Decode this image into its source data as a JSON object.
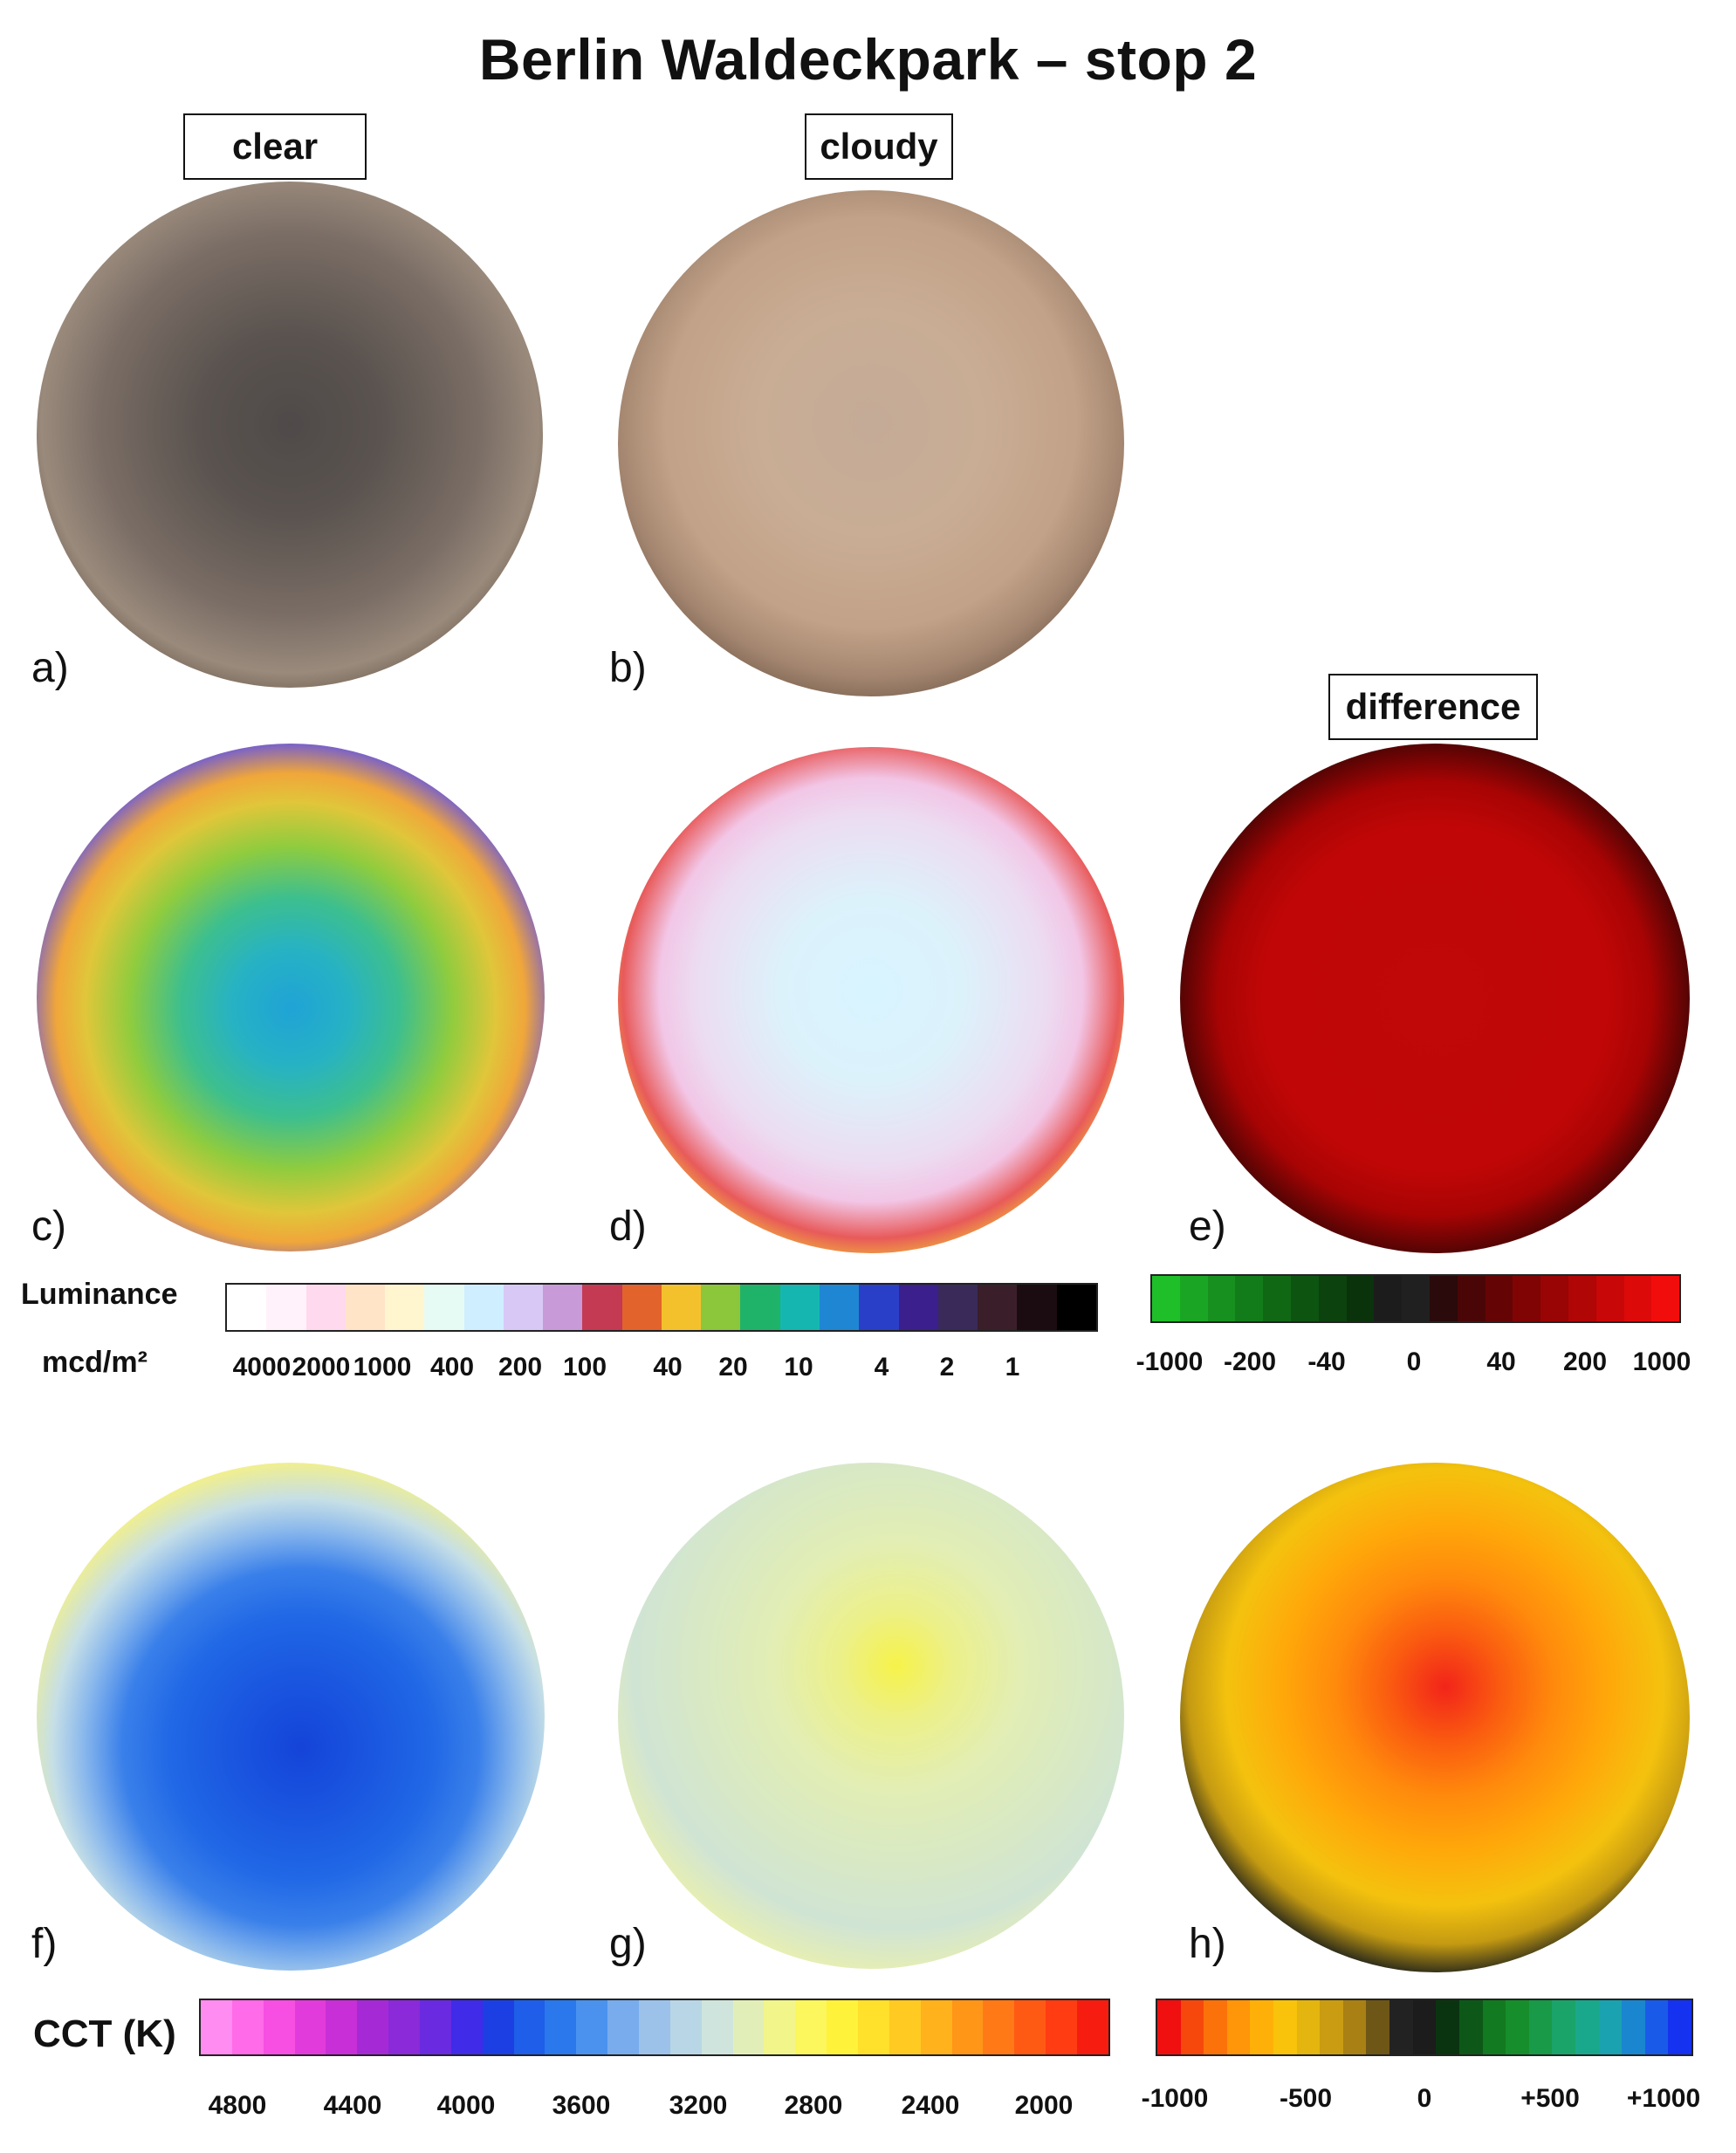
{
  "title": "Berlin Waldeckpark – stop 2",
  "column_labels": {
    "clear": "clear",
    "cloudy": "cloudy",
    "difference": "difference"
  },
  "panels": {
    "a": "a)",
    "b": "b)",
    "c": "c)",
    "d": "d)",
    "e": "e)",
    "f": "f)",
    "g": "g)",
    "h": "h)"
  },
  "luminance_scale": {
    "title": "Luminance",
    "unit": "mcd/m²",
    "ticks": [
      "4000",
      "2000",
      "1000",
      "400",
      "200",
      "100",
      "40",
      "20",
      "10",
      "4",
      "2",
      "1"
    ],
    "colors": [
      "#ffffff",
      "#fff2fb",
      "#ffd9ee",
      "#ffe4c8",
      "#fff6d0",
      "#e6fbf4",
      "#cfeeff",
      "#d8c8f5",
      "#c89ad8",
      "#c43a52",
      "#e2632b",
      "#f3c12c",
      "#8cc63a",
      "#1fb36a",
      "#16b6b0",
      "#1f86d4",
      "#2a3fc7",
      "#3b1f8c",
      "#3a2a5a",
      "#3a1f2a",
      "#1a0c10",
      "#000000"
    ]
  },
  "luminance_difference_scale": {
    "ticks": [
      "-1000",
      "-200",
      "-40",
      "0",
      "40",
      "200",
      "1000"
    ],
    "colors": [
      "#1fbf2a",
      "#1aa624",
      "#17901f",
      "#137c1a",
      "#106815",
      "#0d5411",
      "#0b420e",
      "#0a330b",
      "#1c1c1c",
      "#202020",
      "#2a0a0a",
      "#4a0606",
      "#650404",
      "#800404",
      "#990404",
      "#b00606",
      "#c80808",
      "#dd0a0a",
      "#f20d0d"
    ]
  },
  "cct_scale": {
    "title": "CCT (K)",
    "ticks": [
      "4800",
      "4400",
      "4000",
      "3600",
      "3200",
      "2800",
      "2400",
      "2000"
    ],
    "colors": [
      "#ff8cf0",
      "#ff6be8",
      "#f64fe2",
      "#e23bdb",
      "#c82fd6",
      "#a52ad6",
      "#8a2ad8",
      "#6a2ae0",
      "#3f2be8",
      "#1c3fe4",
      "#1e5ee8",
      "#2a78ec",
      "#4a92ee",
      "#78acec",
      "#9cc2ea",
      "#b8d6e6",
      "#cfe4dc",
      "#e2eeb8",
      "#f1f58a",
      "#fbf75c",
      "#fff23a",
      "#ffe02a",
      "#ffca22",
      "#ffb21c",
      "#ff9618",
      "#ff7a16",
      "#ff5a14",
      "#ff3c12",
      "#f61d10"
    ]
  },
  "cct_difference_scale": {
    "ticks": [
      "-1000",
      "-500",
      "0",
      "+500",
      "+1000"
    ],
    "colors": [
      "#f01010",
      "#f6480c",
      "#fb720a",
      "#ff9508",
      "#ffb008",
      "#f8c30a",
      "#e3b50e",
      "#c99c12",
      "#a88014",
      "#6e5616",
      "#222222",
      "#1c1c1c",
      "#0a3410",
      "#0d5818",
      "#127a20",
      "#168e2c",
      "#189a48",
      "#1aa46a",
      "#1aa88c",
      "#1aa2b0",
      "#1a86d0",
      "#1a5ae8",
      "#1432f0"
    ]
  }
}
